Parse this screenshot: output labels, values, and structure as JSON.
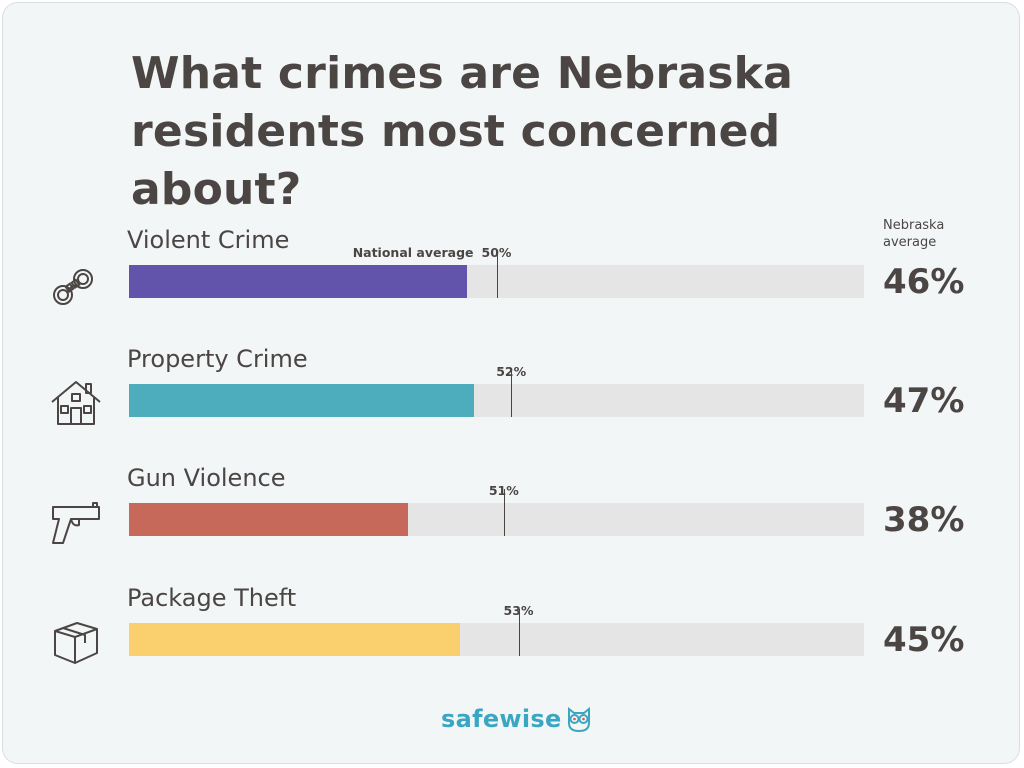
{
  "title": "What crimes are Nebraska residents most concerned about?",
  "average_header": "Nebraska average",
  "national_average_label": "National average",
  "logo_text": "safewise",
  "chart_data": {
    "type": "bar",
    "orientation": "horizontal",
    "title": "What crimes are Nebraska residents most concerned about?",
    "xlim": [
      0,
      100
    ],
    "categories": [
      "Violent Crime",
      "Property Crime",
      "Gun Violence",
      "Package Theft"
    ],
    "series": [
      {
        "name": "Nebraska average",
        "values": [
          46,
          47,
          38,
          45
        ]
      },
      {
        "name": "National average",
        "values": [
          50,
          52,
          51,
          53
        ]
      }
    ],
    "rows": [
      {
        "label": "Violent Crime",
        "value": 46,
        "value_text": "46%",
        "national": 50,
        "national_text": "50%",
        "color": "#6254aa",
        "icon": "handcuffs-icon"
      },
      {
        "label": "Property Crime",
        "value": 47,
        "value_text": "47%",
        "national": 52,
        "national_text": "52%",
        "color": "#4eadbd",
        "icon": "house-icon"
      },
      {
        "label": "Gun Violence",
        "value": 38,
        "value_text": "38%",
        "national": 51,
        "national_text": "51%",
        "color": "#c6685a",
        "icon": "gun-icon"
      },
      {
        "label": "Package Theft",
        "value": 45,
        "value_text": "45%",
        "national": 53,
        "national_text": "53%",
        "color": "#fad06f",
        "icon": "package-icon"
      }
    ]
  },
  "colors": {
    "text": "#4b4644",
    "track": "#e5e5e5",
    "background": "#f2f6f7",
    "logo": "#3aa7c2"
  }
}
